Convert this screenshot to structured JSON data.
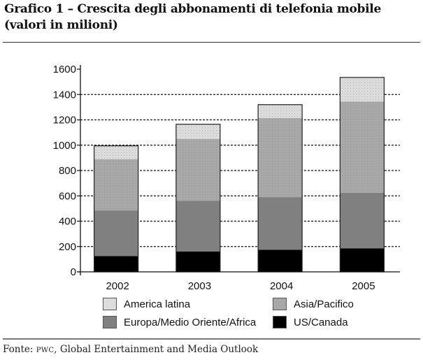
{
  "header": {
    "title_line1": "Grafico 1 – Crescita degli abbonamenti di telefonia mobile",
    "title_line2": "(valori in milioni)"
  },
  "footer": {
    "source_prefix": "Fonte: ",
    "source_org": "PWC",
    "source_rest": ", Global Entertainment and Media Outlook"
  },
  "chart_data": {
    "type": "bar",
    "stacked": true,
    "title": "Crescita degli abbonamenti di telefonia mobile (valori in milioni)",
    "xlabel": "",
    "ylabel": "",
    "categories": [
      "2002",
      "2003",
      "2004",
      "2005"
    ],
    "ylim": [
      0,
      1600
    ],
    "yticks": [
      0,
      200,
      400,
      600,
      800,
      1000,
      1200,
      1400,
      1600
    ],
    "grid": "horizontal-dashed",
    "legend_position": "bottom",
    "series": [
      {
        "name": "US/Canada",
        "color": "#000000",
        "values": [
          125,
          160,
          175,
          185
        ]
      },
      {
        "name": "Europa/Medio Oriente/Africa",
        "color": "#808080",
        "values": [
          360,
          400,
          415,
          440
        ]
      },
      {
        "name": "Asia/Pacifico",
        "color": "#a8a8a8",
        "values": [
          405,
          490,
          625,
          720
        ]
      },
      {
        "name": "America latina",
        "color": "#dcdcdc",
        "values": [
          105,
          115,
          105,
          190
        ]
      }
    ],
    "legend_order": [
      "America latina",
      "Asia/Pacifico",
      "Europa/Medio Oriente/Africa",
      "US/Canada"
    ]
  }
}
